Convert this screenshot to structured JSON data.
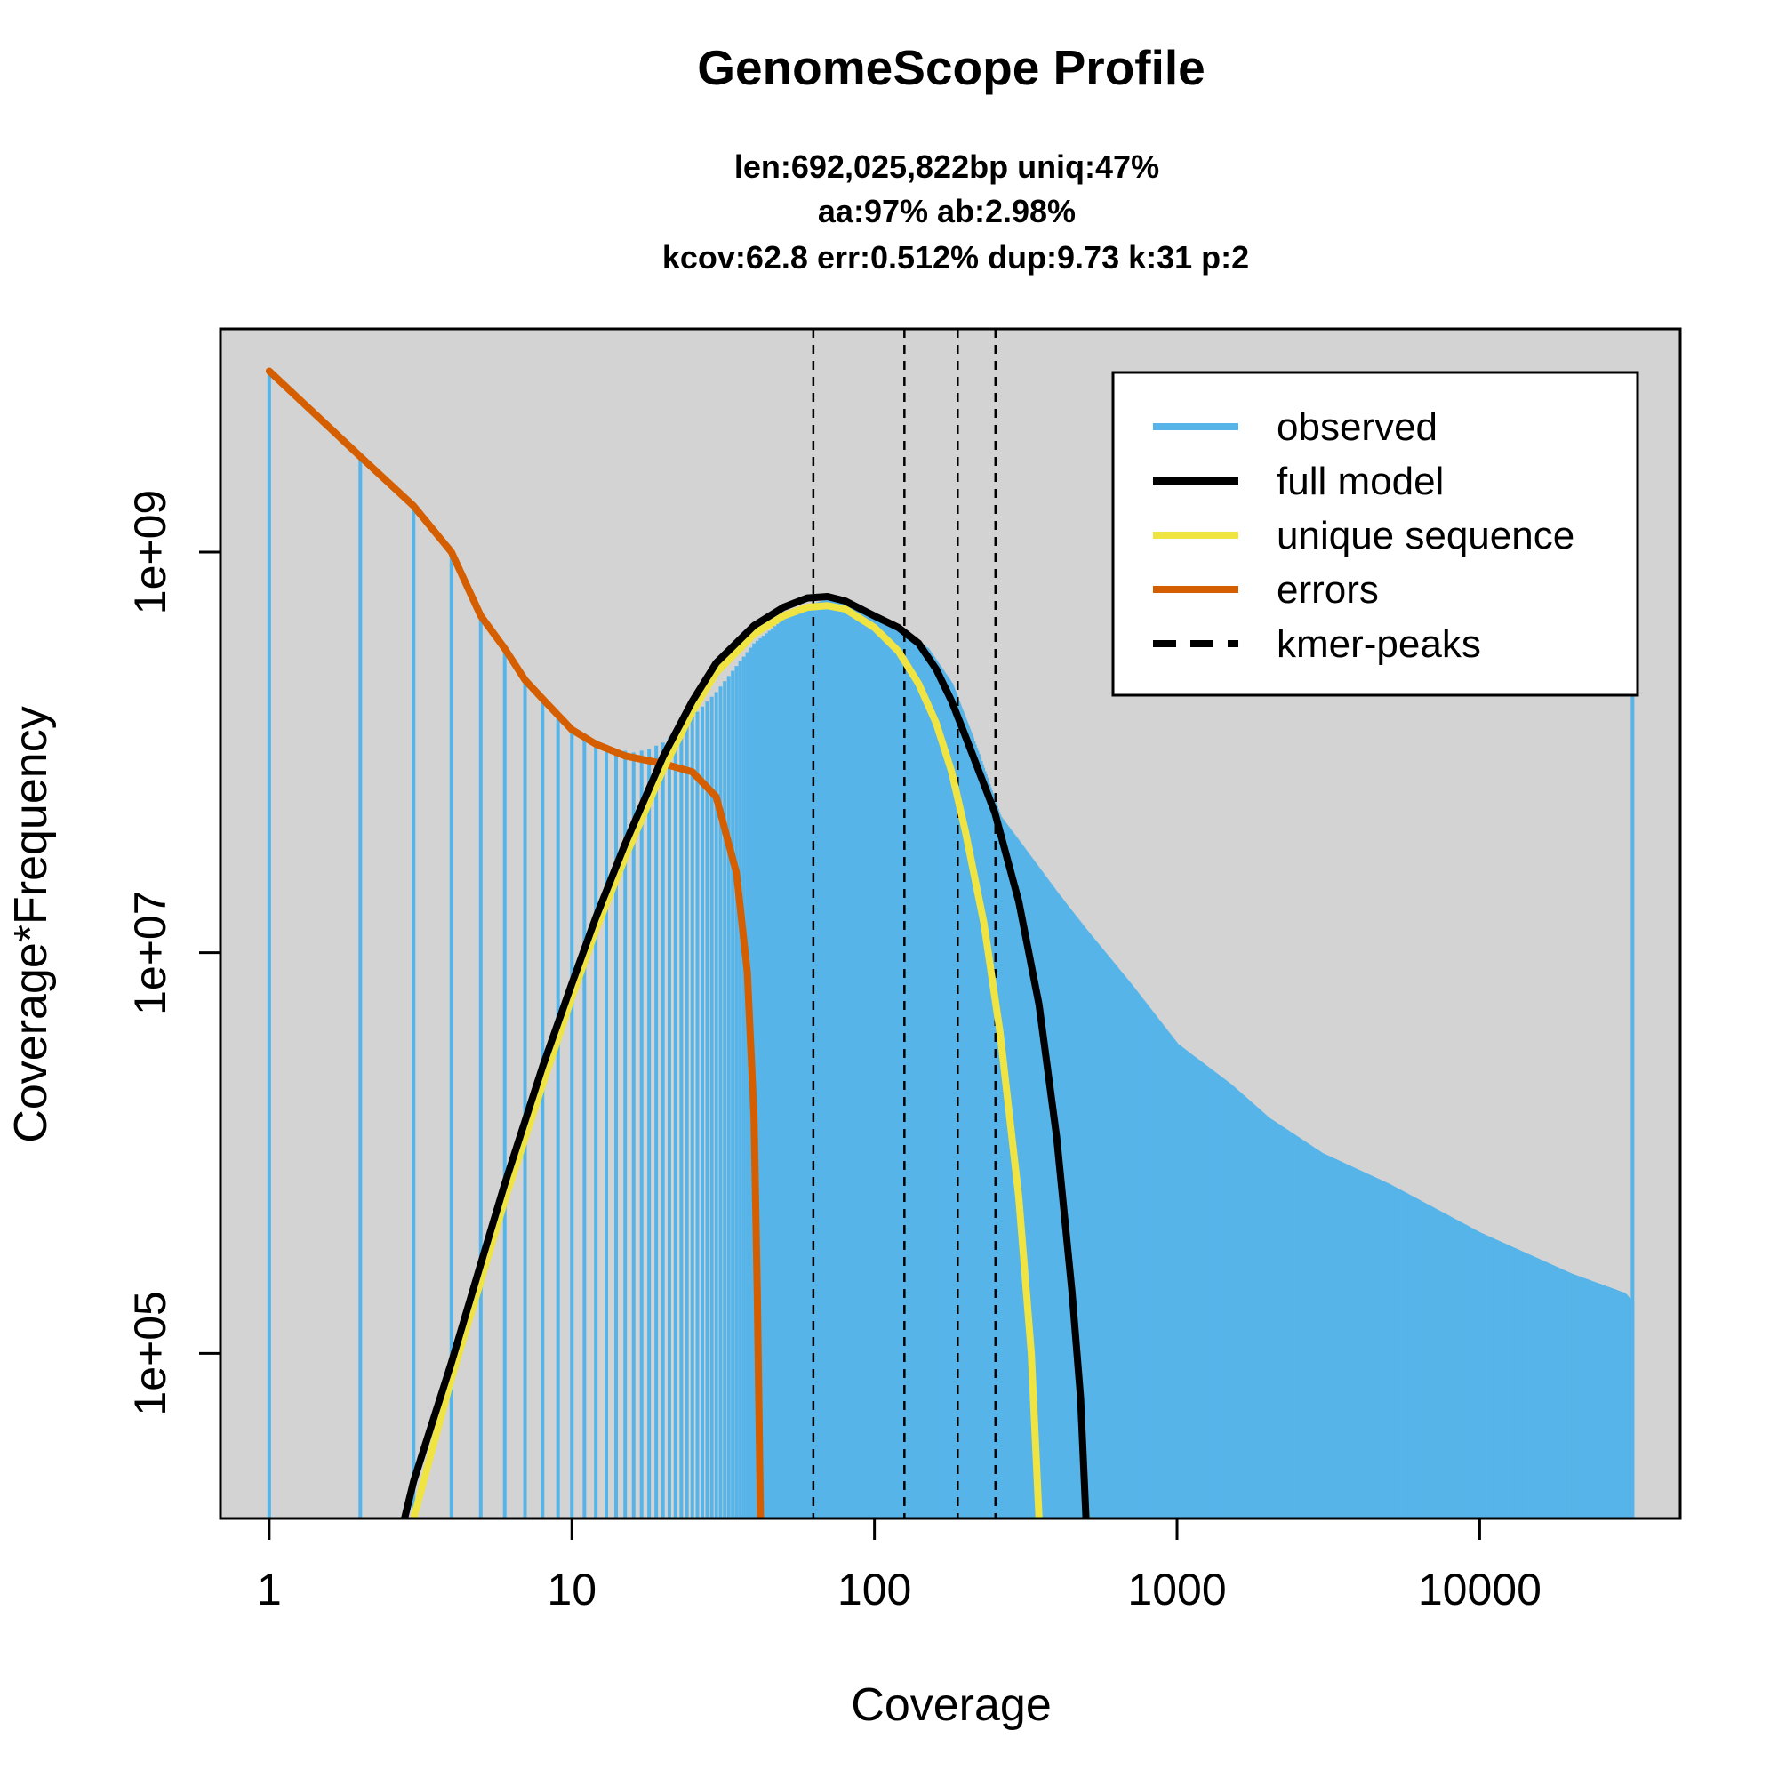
{
  "chart_data": {
    "type": "line",
    "title": "GenomeScope Profile",
    "subtitle_lines": [
      "len:692,025,822bp uniq:47%",
      "aa:97% ab:2.98%",
      "kcov:62.8 err:0.512%  dup:9.73  k:31 p:2"
    ],
    "xlabel": "Coverage",
    "ylabel": "Coverage*Frequency",
    "x_scale": "log",
    "y_scale": "log",
    "xlim": [
      0.69,
      46000
    ],
    "ylim": [
      15000,
      13000000000
    ],
    "x_ticks": [
      {
        "value": 1,
        "label": "1"
      },
      {
        "value": 10,
        "label": "10"
      },
      {
        "value": 100,
        "label": "100"
      },
      {
        "value": 1000,
        "label": "1000"
      },
      {
        "value": 10000,
        "label": "10000"
      }
    ],
    "y_ticks": [
      {
        "value": 100000,
        "label": "1e+05"
      },
      {
        "value": 10000000,
        "label": "1e+07"
      },
      {
        "value": 1000000000,
        "label": "1e+09"
      }
    ],
    "grid": false,
    "legend_position": "top-right",
    "colors": {
      "background": "#d3d3d3",
      "observed": "#56b4e9",
      "full_model": "#000000",
      "unique_sequence": "#f0e442",
      "errors": "#d55e00",
      "kmer_peaks": "#000000"
    },
    "legend": [
      {
        "label": "observed",
        "color": "#56b4e9",
        "style": "solid"
      },
      {
        "label": "full model",
        "color": "#000000",
        "style": "solid"
      },
      {
        "label": "unique sequence",
        "color": "#f0e442",
        "style": "solid"
      },
      {
        "label": "errors",
        "color": "#d55e00",
        "style": "solid"
      },
      {
        "label": "kmer-peaks",
        "color": "#000000",
        "style": "dashed"
      }
    ],
    "kmer_peaks": [
      62.8,
      125.6,
      188.4,
      251.2
    ],
    "series": [
      {
        "name": "observed",
        "type": "histogram",
        "points": [
          [
            1,
            8000000000
          ],
          [
            2,
            3000000000
          ],
          [
            3,
            1700000000
          ],
          [
            4,
            1000000000
          ],
          [
            5,
            480000000
          ],
          [
            6,
            330000000
          ],
          [
            7,
            230000000
          ],
          [
            8,
            185000000
          ],
          [
            9,
            155000000
          ],
          [
            10,
            135000000
          ],
          [
            12,
            115000000
          ],
          [
            14,
            104000000
          ],
          [
            16,
            100000000
          ],
          [
            18,
            104000000
          ],
          [
            20,
            112000000
          ],
          [
            22,
            125000000
          ],
          [
            25,
            150000000
          ],
          [
            30,
            200000000
          ],
          [
            35,
            270000000
          ],
          [
            40,
            350000000
          ],
          [
            50,
            460000000
          ],
          [
            60,
            540000000
          ],
          [
            70,
            580000000
          ],
          [
            80,
            570000000
          ],
          [
            100,
            500000000
          ],
          [
            120,
            420000000
          ],
          [
            150,
            330000000
          ],
          [
            180,
            220000000
          ],
          [
            220,
            100000000
          ],
          [
            260,
            48000000
          ],
          [
            300,
            36000000
          ],
          [
            400,
            20000000
          ],
          [
            500,
            13000000
          ],
          [
            700,
            7000000
          ],
          [
            1000,
            3500000
          ],
          [
            1500,
            2200000
          ],
          [
            2000,
            1500000
          ],
          [
            3000,
            1000000
          ],
          [
            5000,
            700000
          ],
          [
            10000,
            400000
          ],
          [
            20000,
            250000
          ],
          [
            30000,
            200000
          ],
          [
            32000,
            180000
          ]
        ],
        "spike": [
          32000,
          230000000
        ]
      },
      {
        "name": "full model",
        "type": "line",
        "points": [
          [
            2.8,
            15000
          ],
          [
            3,
            23000
          ],
          [
            4,
            90000
          ],
          [
            5,
            280000
          ],
          [
            6,
            700000
          ],
          [
            8,
            2700000
          ],
          [
            10,
            7000000
          ],
          [
            12,
            15000000
          ],
          [
            15,
            35000000
          ],
          [
            20,
            95000000
          ],
          [
            25,
            180000000
          ],
          [
            30,
            280000000
          ],
          [
            40,
            430000000
          ],
          [
            50,
            530000000
          ],
          [
            60,
            590000000
          ],
          [
            70,
            600000000
          ],
          [
            80,
            570000000
          ],
          [
            100,
            480000000
          ],
          [
            120,
            420000000
          ],
          [
            140,
            350000000
          ],
          [
            160,
            260000000
          ],
          [
            180,
            180000000
          ],
          [
            200,
            120000000
          ],
          [
            250,
            50000000
          ],
          [
            300,
            18000000
          ],
          [
            350,
            5500000
          ],
          [
            400,
            1200000
          ],
          [
            450,
            200000
          ],
          [
            480,
            60000
          ],
          [
            500,
            15000
          ]
        ]
      },
      {
        "name": "unique sequence",
        "type": "line",
        "points": [
          [
            3,
            15000
          ],
          [
            4,
            75000
          ],
          [
            5,
            230000
          ],
          [
            6,
            580000
          ],
          [
            8,
            2200000
          ],
          [
            10,
            6000000
          ],
          [
            12,
            13000000
          ],
          [
            15,
            30000000
          ],
          [
            20,
            82000000
          ],
          [
            25,
            160000000
          ],
          [
            30,
            250000000
          ],
          [
            40,
            390000000
          ],
          [
            50,
            480000000
          ],
          [
            60,
            530000000
          ],
          [
            70,
            540000000
          ],
          [
            80,
            520000000
          ],
          [
            100,
            420000000
          ],
          [
            120,
            320000000
          ],
          [
            140,
            220000000
          ],
          [
            160,
            140000000
          ],
          [
            180,
            80000000
          ],
          [
            200,
            40000000
          ],
          [
            230,
            14000000
          ],
          [
            260,
            4000000
          ],
          [
            300,
            600000
          ],
          [
            330,
            100000
          ],
          [
            350,
            15000
          ]
        ]
      },
      {
        "name": "errors",
        "type": "line",
        "points": [
          [
            1,
            8000000000
          ],
          [
            2,
            3000000000
          ],
          [
            3,
            1700000000
          ],
          [
            4,
            1000000000
          ],
          [
            5,
            480000000
          ],
          [
            6,
            330000000
          ],
          [
            7,
            230000000
          ],
          [
            8,
            185000000
          ],
          [
            10,
            130000000
          ],
          [
            12,
            110000000
          ],
          [
            15,
            96000000
          ],
          [
            20,
            88000000
          ],
          [
            25,
            80000000
          ],
          [
            30,
            60000000
          ],
          [
            35,
            25000000
          ],
          [
            38,
            8000000
          ],
          [
            40,
            1500000
          ],
          [
            41,
            200000
          ],
          [
            42,
            15000
          ]
        ]
      }
    ]
  }
}
